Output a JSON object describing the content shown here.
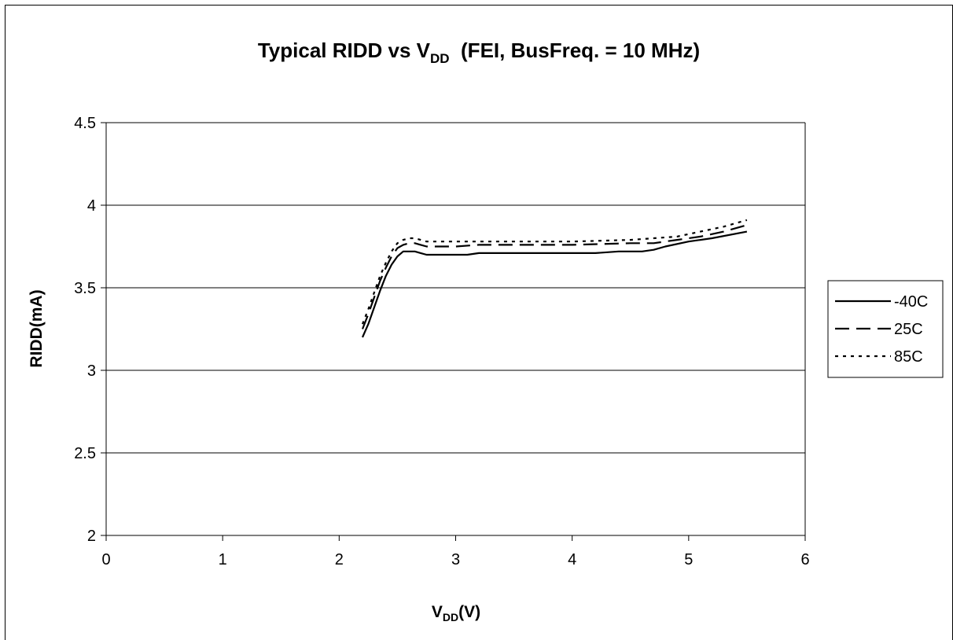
{
  "chart_data": {
    "type": "line",
    "title": {
      "main": "Typical RIDD vs V",
      "sub": "DD",
      "suffix": "  (FEI, BusFreq. = 10 MHz)"
    },
    "xlabel": {
      "main": "V",
      "sub": "DD",
      "suffix": "(V)"
    },
    "ylabel": "RIDD(mA)",
    "xlim": [
      0,
      6
    ],
    "ylim": [
      2,
      4.5
    ],
    "x_ticks": [
      "0",
      "1",
      "2",
      "3",
      "4",
      "5",
      "6"
    ],
    "y_ticks": [
      "2",
      "2.5",
      "3",
      "3.5",
      "4",
      "4.5"
    ],
    "grid": "horizontal",
    "legend_position": "right",
    "series": [
      {
        "name": "-40C",
        "style": "solid",
        "x": [
          2.2,
          2.25,
          2.3,
          2.35,
          2.4,
          2.45,
          2.5,
          2.55,
          2.6,
          2.65,
          2.7,
          2.75,
          2.8,
          3.0,
          3.1,
          3.2,
          3.5,
          4.0,
          4.2,
          4.4,
          4.5,
          4.6,
          4.7,
          4.8,
          5.0,
          5.2,
          5.5
        ],
        "values": [
          3.2,
          3.28,
          3.38,
          3.48,
          3.57,
          3.64,
          3.69,
          3.72,
          3.72,
          3.72,
          3.71,
          3.7,
          3.7,
          3.7,
          3.7,
          3.71,
          3.71,
          3.71,
          3.71,
          3.72,
          3.72,
          3.72,
          3.73,
          3.75,
          3.78,
          3.8,
          3.84
        ]
      },
      {
        "name": "25C",
        "style": "dashed",
        "x": [
          2.2,
          2.25,
          2.3,
          2.35,
          2.4,
          2.45,
          2.5,
          2.55,
          2.6,
          2.65,
          2.7,
          2.75,
          2.8,
          3.0,
          3.2,
          3.5,
          4.0,
          4.5,
          4.7,
          4.9,
          5.1,
          5.3,
          5.5
        ],
        "values": [
          3.25,
          3.34,
          3.44,
          3.54,
          3.62,
          3.69,
          3.74,
          3.76,
          3.77,
          3.77,
          3.76,
          3.75,
          3.75,
          3.75,
          3.76,
          3.76,
          3.76,
          3.77,
          3.77,
          3.79,
          3.81,
          3.84,
          3.88
        ]
      },
      {
        "name": "85C",
        "style": "dotted",
        "x": [
          2.2,
          2.25,
          2.3,
          2.35,
          2.4,
          2.45,
          2.5,
          2.55,
          2.6,
          2.65,
          2.7,
          2.75,
          2.8,
          3.0,
          3.2,
          3.5,
          4.0,
          4.5,
          4.7,
          4.9,
          5.1,
          5.3,
          5.5
        ],
        "values": [
          3.28,
          3.37,
          3.47,
          3.57,
          3.65,
          3.72,
          3.77,
          3.79,
          3.8,
          3.8,
          3.79,
          3.78,
          3.78,
          3.78,
          3.78,
          3.78,
          3.78,
          3.79,
          3.8,
          3.81,
          3.84,
          3.87,
          3.91
        ]
      }
    ]
  },
  "colors": {
    "line": "#000000",
    "grid": "#000000",
    "background": "#ffffff"
  }
}
